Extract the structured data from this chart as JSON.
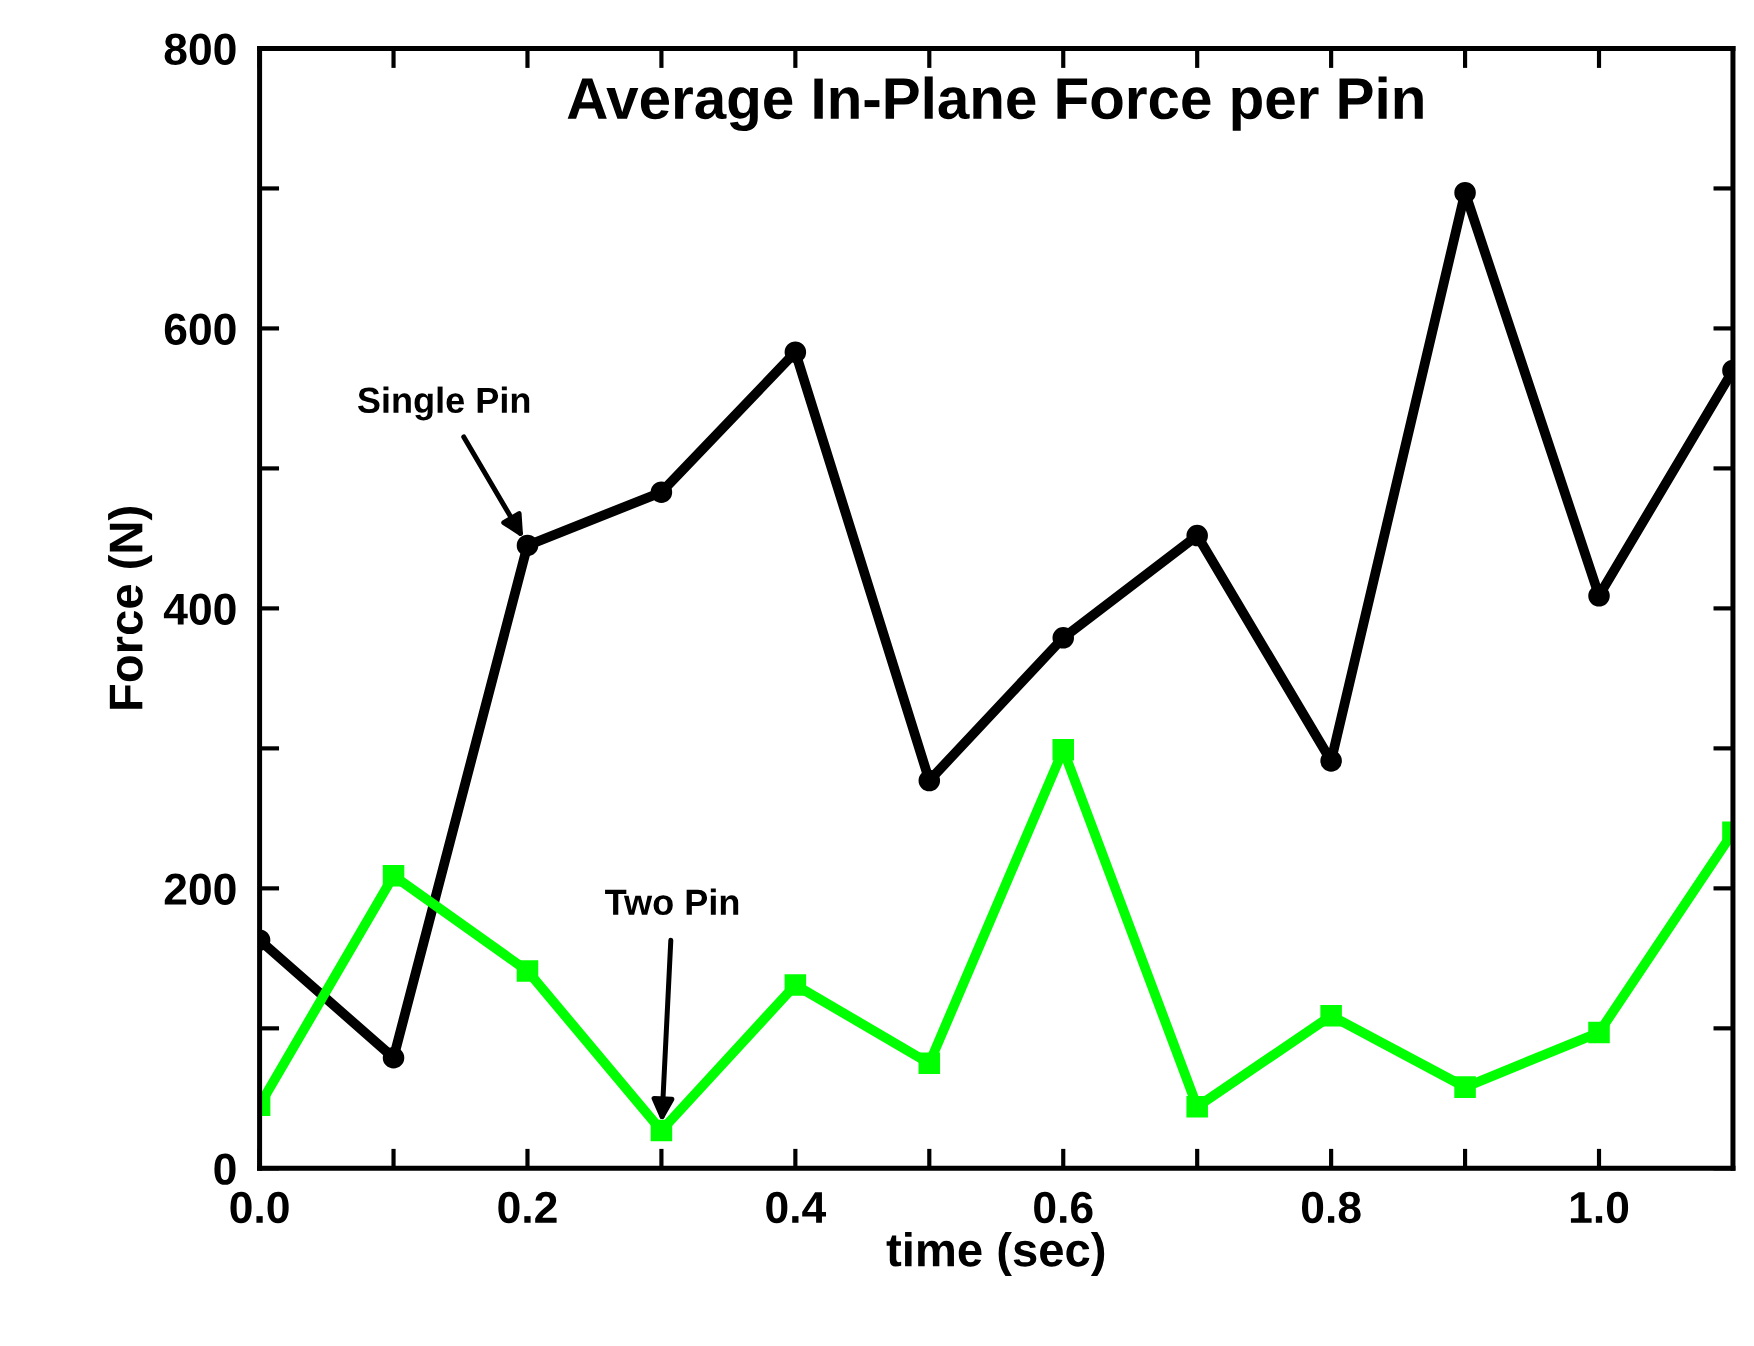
{
  "chart_data": {
    "type": "line",
    "title": "Average In-Plane Force per Pin",
    "xlabel": "time (sec)",
    "ylabel": "Force (N)",
    "x": [
      0.0,
      0.1,
      0.2,
      0.3,
      0.4,
      0.5,
      0.6,
      0.7,
      0.8,
      0.9,
      1.0,
      1.1
    ],
    "series": [
      {
        "color": "#000000",
        "marker": "circle",
        "values": [
          163,
          79,
          445,
          483,
          583,
          277,
          379,
          452,
          291,
          697,
          409,
          570
        ]
      },
      {
        "color": "#00ff00",
        "marker": "square",
        "values": [
          45,
          209,
          141,
          27,
          131,
          75,
          299,
          44,
          109,
          58,
          97,
          240
        ]
      }
    ],
    "xlim": [
      0,
      1.1
    ],
    "ylim": [
      0,
      800
    ],
    "xticks": [
      "0.0",
      {
        "value": 0.1,
        "label": null
      },
      {
        "value": 0.2,
        "label": "0.2"
      },
      {
        "value": 0.3,
        "label": null
      },
      {
        "value": 0.4,
        "label": "0.4"
      },
      {
        "value": 0.5,
        "label": null
      },
      {
        "value": 0.6,
        "label": "0.6"
      },
      {
        "value": 0.7,
        "label": null
      },
      {
        "value": 0.8,
        "label": "0.8"
      },
      {
        "value": 0.9,
        "label": null
      },
      {
        "value": 1.0,
        "label": "1.0"
      }
    ],
    "yticks": [
      0,
      {
        "value": 100,
        "label": null
      },
      200,
      {
        "value": 300,
        "label": null
      },
      400,
      {
        "value": 500,
        "label": null
      },
      600,
      {
        "value": 700,
        "label": null
      },
      800
    ],
    "annotations": [
      {
        "text": "Single Pin",
        "x": 0.2,
        "y": 445
      },
      {
        "text": "Two Pin",
        "x": 0.3,
        "y": 27
      }
    ],
    "line_style": "solid",
    "grid": false,
    "legend": false
  }
}
